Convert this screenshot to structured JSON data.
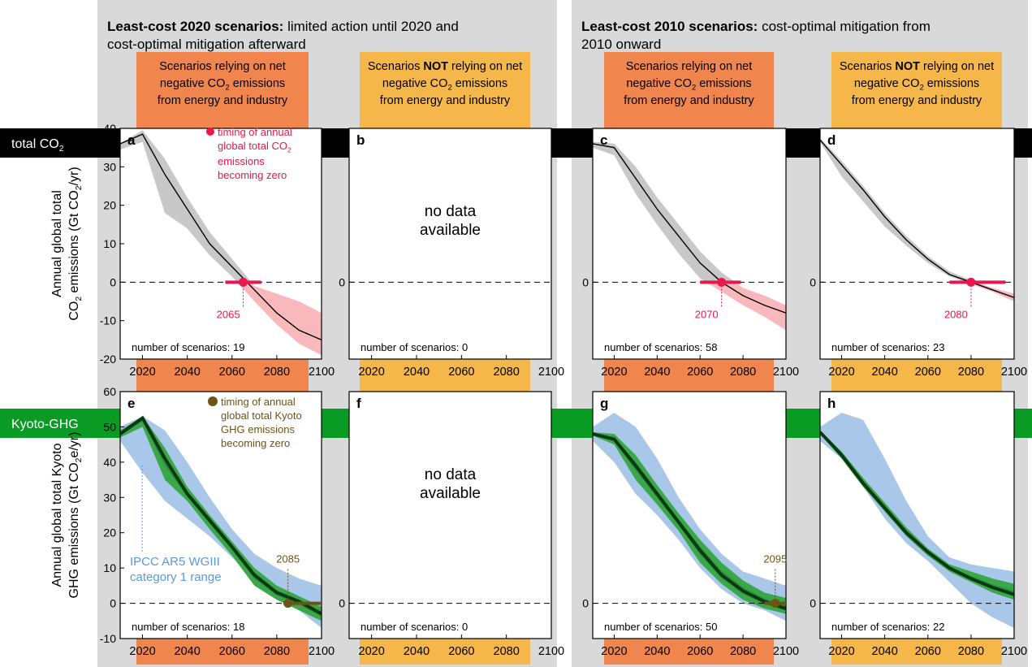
{
  "colors": {
    "group_bg": "#d9d9d9",
    "neg_header": "#f0864d",
    "notneg_header": "#f5b64a",
    "co2_bar": "#000000",
    "ghg_bar": "#0a9b25",
    "band_gray": "#c8c8c8",
    "band_pink": "#f8b8bc",
    "zero_marker": "#e8174c",
    "blue_range": "#a9c7e8",
    "green_range": "#2e8f3c",
    "green_light": "#3aa848",
    "ghg_zero_marker": "#6b5416",
    "ipcc_text": "#5b9ad6",
    "ghg_zero_text": "#6b5416"
  },
  "groups": [
    {
      "title_bold": "Least-cost 2020 scenarios:",
      "title_rest": " limited action until 2020 and",
      "title_line2": "cost-optimal mitigation afterward"
    },
    {
      "title_bold": "Least-cost 2010 scenarios:",
      "title_rest": " cost-optimal mitigation from",
      "title_line2": "2010 onward"
    }
  ],
  "column_headers": [
    {
      "line1_pre": "Scenarios relying on net",
      "line1_bold": "",
      "line1_post": "",
      "line2": "negative CO",
      "line2_sub": "2",
      "line2_post": " emissions",
      "line3": "from energy and industry"
    },
    {
      "line1_pre": "Scenarios ",
      "line1_bold": "NOT",
      "line1_post": " relying on net",
      "line2": "negative CO",
      "line2_sub": "2",
      "line2_post": " emissions",
      "line3": "from energy and industry"
    },
    {
      "line1_pre": "Scenarios relying on net",
      "line1_bold": "",
      "line1_post": "",
      "line2": "negative CO",
      "line2_sub": "2",
      "line2_post": " emissions",
      "line3": "from energy and industry"
    },
    {
      "line1_pre": "Scenarios ",
      "line1_bold": "NOT",
      "line1_post": " relying on net",
      "line2": "negative CO",
      "line2_sub": "2",
      "line2_post": " emissions",
      "line3": "from energy and industry"
    }
  ],
  "row_labels": {
    "co2": {
      "text": "total CO",
      "sub": "2"
    },
    "ghg": {
      "text": "Kyoto-GHG"
    }
  },
  "y_axis_titles": {
    "co2": {
      "line1": "Annual global total",
      "line2_pre": "CO",
      "line2_sub": "2",
      "line2_mid": " emissions (Gt CO",
      "line2_sub2": "2",
      "line2_post": "/yr)"
    },
    "ghg": {
      "line1": "Annual global total Kyoto",
      "line2_pre": "GHG emissions (Gt CO",
      "line2_sub": "2",
      "line2_post": "e/yr)"
    }
  },
  "no_data_text": [
    "no data",
    "available"
  ],
  "scenario_prefix": "number of scenarios: ",
  "legend_co2": {
    "lines": [
      "timing of annual",
      "global total CO",
      "emissions",
      "becoming zero"
    ],
    "sub": "2"
  },
  "legend_ghg": {
    "lines": [
      "timing of annual",
      "global total Kyoto",
      "GHG emissions",
      "becoming zero"
    ]
  },
  "ipcc_label": [
    "IPCC AR5 WGIII",
    "category 1 range"
  ],
  "chart_data": [
    {
      "panel": "a",
      "type": "area",
      "row": "co2",
      "xlim": [
        2010,
        2100
      ],
      "ylim": [
        -20,
        40
      ],
      "x_ticks": [
        2020,
        2040,
        2060,
        2080,
        2100
      ],
      "y_ticks": [
        -20,
        -10,
        0,
        10,
        20,
        30,
        40
      ],
      "scenarios": "19",
      "zero_year": "2065",
      "zero_range": [
        2057,
        2073
      ],
      "median": {
        "x": [
          2010,
          2020,
          2030,
          2040,
          2050,
          2060,
          2070,
          2080,
          2090,
          2100
        ],
        "y": [
          36,
          38.5,
          28,
          19,
          10,
          4,
          -2,
          -8,
          -12.5,
          -15
        ]
      },
      "band_upper": {
        "x": [
          2010,
          2020,
          2030,
          2040,
          2050,
          2060,
          2070,
          2080,
          2090,
          2100
        ],
        "y": [
          36,
          39.5,
          32,
          22,
          13,
          6,
          -1,
          -3,
          -5,
          -8
        ]
      },
      "band_lower": {
        "x": [
          2010,
          2020,
          2030,
          2040,
          2050,
          2060,
          2070,
          2080,
          2090,
          2100
        ],
        "y": [
          34.5,
          36.5,
          18,
          14,
          7,
          1.5,
          -5,
          -11,
          -16,
          -19
        ]
      }
    },
    {
      "panel": "b",
      "type": "area",
      "row": "co2",
      "xlim": [
        2010,
        2100
      ],
      "ylim": [
        -20,
        40
      ],
      "x_ticks": [
        2020,
        2040,
        2060,
        2080,
        2100
      ],
      "y_ticks": [
        0
      ],
      "scenarios": "0",
      "no_data": true
    },
    {
      "panel": "c",
      "type": "area",
      "row": "co2",
      "xlim": [
        2010,
        2100
      ],
      "ylim": [
        -20,
        40
      ],
      "x_ticks": [
        2020,
        2040,
        2060,
        2080,
        2100
      ],
      "y_ticks": [
        0
      ],
      "scenarios": "58",
      "zero_year": "2070",
      "zero_range": [
        2060,
        2079
      ],
      "median": {
        "x": [
          2010,
          2020,
          2030,
          2040,
          2050,
          2060,
          2070,
          2080,
          2090,
          2100
        ],
        "y": [
          36,
          35,
          27,
          19,
          12,
          5,
          0,
          -3.5,
          -6,
          -8
        ]
      },
      "band_upper": {
        "x": [
          2010,
          2020,
          2030,
          2040,
          2050,
          2060,
          2070,
          2080,
          2090,
          2100
        ],
        "y": [
          36.5,
          36,
          30,
          22,
          15,
          8,
          2.5,
          -1.5,
          -3.5,
          -6
        ]
      },
      "band_lower": {
        "x": [
          2010,
          2020,
          2030,
          2040,
          2050,
          2060,
          2070,
          2080,
          2090,
          2100
        ],
        "y": [
          35,
          33,
          23,
          15,
          7.5,
          1,
          -2.5,
          -6,
          -9,
          -12.5
        ]
      }
    },
    {
      "panel": "d",
      "type": "area",
      "row": "co2",
      "xlim": [
        2010,
        2100
      ],
      "ylim": [
        -20,
        40
      ],
      "x_ticks": [
        2020,
        2040,
        2060,
        2080,
        2100
      ],
      "y_ticks": [
        0
      ],
      "scenarios": "23",
      "zero_year": "2080",
      "zero_range": [
        2070,
        2096
      ],
      "median": {
        "x": [
          2010,
          2020,
          2030,
          2040,
          2050,
          2060,
          2070,
          2080,
          2090,
          2100
        ],
        "y": [
          37,
          30.5,
          24,
          17,
          11,
          6,
          2,
          0,
          -2,
          -4
        ]
      },
      "band_upper": {
        "x": [
          2010,
          2020,
          2030,
          2040,
          2050,
          2060,
          2070,
          2080,
          2090,
          2100
        ],
        "y": [
          37.5,
          31.5,
          25,
          18,
          12,
          6.8,
          2.8,
          0.5,
          -1.5,
          -3
        ]
      },
      "band_lower": {
        "x": [
          2010,
          2020,
          2030,
          2040,
          2050,
          2060,
          2070,
          2080,
          2090,
          2100
        ],
        "y": [
          36.5,
          27.5,
          21,
          14.5,
          9.5,
          5,
          1.5,
          -0.5,
          -2.5,
          -5
        ]
      }
    },
    {
      "panel": "e",
      "type": "area",
      "row": "ghg",
      "xlim": [
        2010,
        2100
      ],
      "ylim": [
        -10,
        60
      ],
      "x_ticks": [
        2020,
        2040,
        2060,
        2080,
        2100
      ],
      "y_ticks": [
        -10,
        0,
        10,
        20,
        30,
        40,
        50,
        60
      ],
      "scenarios": "18",
      "zero_year": "2085",
      "zero_range": [
        2083,
        2100
      ],
      "median": {
        "x": [
          2010,
          2020,
          2030,
          2040,
          2050,
          2060,
          2070,
          2080,
          2090,
          2100
        ],
        "y": [
          48,
          52.5,
          41,
          31,
          23.5,
          16,
          8,
          3,
          0.5,
          -3
        ]
      },
      "green_upper": {
        "x": [
          2010,
          2020,
          2030,
          2040,
          2050,
          2060,
          2070,
          2080,
          2090,
          2100
        ],
        "y": [
          49,
          53,
          44,
          33,
          25,
          17.5,
          10,
          5,
          2,
          -1
        ]
      },
      "green_lower": {
        "x": [
          2010,
          2020,
          2030,
          2040,
          2050,
          2060,
          2070,
          2080,
          2090,
          2100
        ],
        "y": [
          47,
          50,
          35,
          29,
          21,
          13.5,
          5,
          1,
          -2,
          -5
        ]
      },
      "blue_upper": {
        "x": [
          2010,
          2020,
          2030,
          2040,
          2050,
          2060,
          2070,
          2080,
          2090,
          2100
        ],
        "y": [
          50,
          53,
          49,
          40,
          30,
          21,
          14,
          10,
          7,
          5
        ]
      },
      "blue_lower": {
        "x": [
          2010,
          2020,
          2030,
          2040,
          2050,
          2060,
          2070,
          2080,
          2090,
          2100
        ],
        "y": [
          46,
          37,
          29,
          24,
          19,
          13,
          7,
          2,
          -2,
          -7
        ]
      }
    },
    {
      "panel": "f",
      "type": "area",
      "row": "ghg",
      "xlim": [
        2010,
        2100
      ],
      "ylim": [
        -10,
        60
      ],
      "x_ticks": [
        2020,
        2040,
        2060,
        2080,
        2100
      ],
      "y_ticks": [
        0
      ],
      "scenarios": "0",
      "no_data": true
    },
    {
      "panel": "g",
      "type": "area",
      "row": "ghg",
      "xlim": [
        2010,
        2100
      ],
      "ylim": [
        -10,
        60
      ],
      "x_ticks": [
        2020,
        2040,
        2060,
        2080,
        2100
      ],
      "y_ticks": [
        0
      ],
      "scenarios": "50",
      "zero_year": "2095",
      "zero_range": [
        2090,
        2100
      ],
      "median": {
        "x": [
          2010,
          2020,
          2030,
          2040,
          2050,
          2060,
          2070,
          2080,
          2090,
          2100
        ],
        "y": [
          48,
          46.5,
          39,
          31,
          23,
          15,
          8,
          3.5,
          0.5,
          -1.5
        ]
      },
      "green_upper": {
        "x": [
          2010,
          2020,
          2030,
          2040,
          2050,
          2060,
          2070,
          2080,
          2090,
          2100
        ],
        "y": [
          48.5,
          48,
          42,
          33.5,
          25.5,
          18,
          11.5,
          6.5,
          3,
          1.5
        ]
      },
      "green_lower": {
        "x": [
          2010,
          2020,
          2030,
          2040,
          2050,
          2060,
          2070,
          2080,
          2090,
          2100
        ],
        "y": [
          47.5,
          45,
          35,
          28,
          20.5,
          11.5,
          5.5,
          1,
          -1.5,
          -3
        ]
      },
      "blue_upper": {
        "x": [
          2010,
          2020,
          2030,
          2040,
          2050,
          2060,
          2070,
          2080,
          2090,
          2100
        ],
        "y": [
          50,
          54,
          50,
          41,
          30,
          21,
          14,
          9,
          7,
          5
        ]
      },
      "blue_lower": {
        "x": [
          2010,
          2020,
          2030,
          2040,
          2050,
          2060,
          2070,
          2080,
          2090,
          2100
        ],
        "y": [
          46,
          40,
          31,
          25,
          18,
          10,
          4,
          0,
          -2,
          -5
        ]
      }
    },
    {
      "panel": "h",
      "type": "area",
      "row": "ghg",
      "xlim": [
        2010,
        2100
      ],
      "ylim": [
        -10,
        60
      ],
      "x_ticks": [
        2020,
        2040,
        2060,
        2080,
        2100
      ],
      "y_ticks": [
        0
      ],
      "scenarios": "22",
      "median": {
        "x": [
          2010,
          2020,
          2030,
          2040,
          2050,
          2060,
          2070,
          2080,
          2090,
          2100
        ],
        "y": [
          48.5,
          42,
          34,
          27,
          20,
          14.5,
          10,
          7,
          4.5,
          2.5
        ]
      },
      "green_upper": {
        "x": [
          2010,
          2020,
          2030,
          2040,
          2050,
          2060,
          2070,
          2080,
          2090,
          2100
        ],
        "y": [
          49,
          43,
          35.5,
          28.5,
          21.5,
          15.5,
          11,
          9,
          7,
          5.5
        ]
      },
      "green_lower": {
        "x": [
          2010,
          2020,
          2030,
          2040,
          2050,
          2060,
          2070,
          2080,
          2090,
          2100
        ],
        "y": [
          48,
          41,
          33,
          26,
          19,
          13.5,
          9,
          6,
          3,
          1
        ]
      },
      "blue_upper": {
        "x": [
          2010,
          2020,
          2030,
          2040,
          2050,
          2060,
          2070,
          2080,
          2090,
          2100
        ],
        "y": [
          50,
          54,
          52,
          41,
          29,
          19,
          13,
          11,
          10,
          9
        ]
      },
      "blue_lower": {
        "x": [
          2010,
          2020,
          2030,
          2040,
          2050,
          2060,
          2070,
          2080,
          2090,
          2100
        ],
        "y": [
          46,
          41,
          33,
          24,
          17,
          12,
          6,
          0,
          -4,
          -7
        ]
      }
    }
  ]
}
